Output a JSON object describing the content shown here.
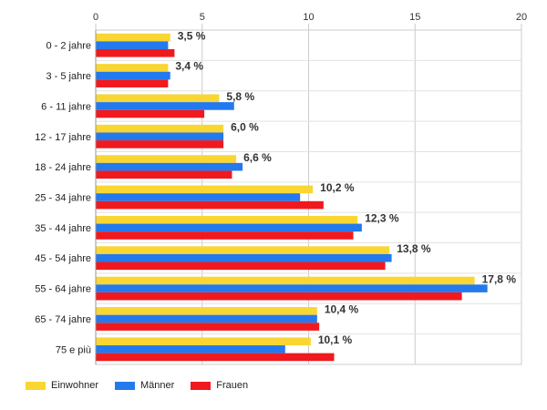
{
  "chart_data": {
    "type": "bar",
    "orientation": "horizontal",
    "categories": [
      "0 - 2 jahre",
      "3 - 5 jahre",
      "6 - 11 jahre",
      "12 - 17 jahre",
      "18 - 24 jahre",
      "25 - 34 jahre",
      "35 - 44 jahre",
      "45 - 54 jahre",
      "55 - 64 jahre",
      "65 - 74 jahre",
      "75 e più"
    ],
    "series": [
      {
        "name": "Einwohner",
        "color": "#f9d632",
        "values": [
          3.5,
          3.4,
          5.8,
          6.0,
          6.6,
          10.2,
          12.3,
          13.8,
          17.8,
          10.4,
          10.1
        ]
      },
      {
        "name": "Männer",
        "color": "#2379ee",
        "values": [
          3.4,
          3.5,
          6.5,
          6.0,
          6.9,
          9.6,
          12.5,
          13.9,
          18.4,
          10.4,
          8.9
        ]
      },
      {
        "name": "Frauen",
        "color": "#f0191e",
        "values": [
          3.7,
          3.4,
          5.1,
          6.0,
          6.4,
          10.7,
          12.1,
          13.6,
          17.2,
          10.5,
          11.2
        ]
      }
    ],
    "data_labels": [
      "3,5 %",
      "3,4 %",
      "5,8 %",
      "6,0 %",
      "6,6 %",
      "10,2 %",
      "12,3 %",
      "13,8 %",
      "17,8 %",
      "10,4 %",
      "10,1 %"
    ],
    "xlim": [
      0,
      20
    ],
    "xticks": [
      0,
      5,
      10,
      15,
      20
    ],
    "xtick_labels": [
      "0",
      "5",
      "10",
      "15",
      "20"
    ],
    "grid": true,
    "legend_position": "bottom-left"
  }
}
